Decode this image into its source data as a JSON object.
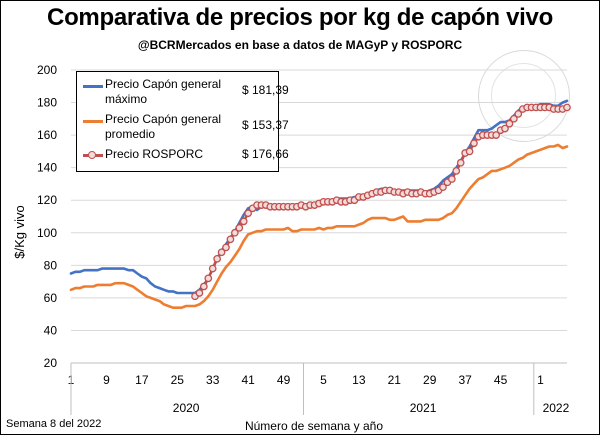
{
  "chart_data": {
    "type": "line",
    "title": "Comparativa de precios por kg de capón vivo",
    "subtitle": "@BCRMercados en base a datos de MAGyP y ROSPORC",
    "xlabel": "Número de semana y año",
    "ylabel": "$/Kg vivo",
    "ylim": [
      20,
      200
    ],
    "yticks": [
      20,
      40,
      60,
      80,
      100,
      120,
      140,
      160,
      180,
      200
    ],
    "x": [
      1,
      2,
      3,
      4,
      5,
      6,
      7,
      8,
      9,
      10,
      11,
      12,
      13,
      14,
      15,
      16,
      17,
      18,
      19,
      20,
      21,
      22,
      23,
      24,
      25,
      26,
      27,
      28,
      29,
      30,
      31,
      32,
      33,
      34,
      35,
      36,
      37,
      38,
      39,
      40,
      41,
      42,
      43,
      44,
      45,
      46,
      47,
      48,
      49,
      50,
      51,
      52,
      53,
      1,
      2,
      3,
      4,
      5,
      6,
      7,
      8,
      9,
      10,
      11,
      12,
      13,
      14,
      15,
      16,
      17,
      18,
      19,
      20,
      21,
      22,
      23,
      24,
      25,
      26,
      27,
      28,
      29,
      30,
      31,
      32,
      33,
      34,
      35,
      36,
      37,
      38,
      39,
      40,
      41,
      42,
      43,
      44,
      45,
      46,
      47,
      48,
      49,
      50,
      51,
      52,
      1,
      2,
      3,
      4,
      5,
      6,
      7,
      8
    ],
    "xtick_labels": [
      "1",
      "9",
      "17",
      "25",
      "33",
      "41",
      "49",
      "5",
      "13",
      "21",
      "29",
      "37",
      "45",
      "1"
    ],
    "xtick_indices": [
      0,
      8,
      16,
      24,
      32,
      40,
      48,
      57,
      65,
      73,
      81,
      89,
      97,
      106
    ],
    "year_labels": [
      "2020",
      "2021",
      "2022"
    ],
    "year_centers": [
      26,
      79.5,
      109.5
    ],
    "year_separators": [
      52.5,
      104.5
    ],
    "grid": "horizontal",
    "legend_position": "top-left",
    "series": [
      {
        "name": "Precio Capón general máximo",
        "legend_lines": [
          "Precio Capón general",
          "máximo"
        ],
        "current_value": "$ 181,39",
        "color": "#4472c4",
        "marker": "none",
        "values": [
          75,
          76,
          76,
          77,
          77,
          77,
          77,
          78,
          78,
          78,
          78,
          78,
          78,
          77,
          77,
          75,
          73,
          72,
          69,
          67,
          66,
          65,
          64,
          64,
          63,
          63,
          63,
          63,
          63,
          65,
          68,
          72,
          78,
          84,
          89,
          93,
          97,
          101,
          106,
          111,
          115,
          116,
          114,
          116,
          117,
          117,
          117,
          117,
          117,
          116,
          116,
          116,
          116,
          116,
          117,
          117,
          119,
          119,
          120,
          120,
          121,
          121,
          121,
          121,
          122,
          122,
          123,
          124,
          125,
          126,
          127,
          127,
          127,
          126,
          126,
          126,
          126,
          126,
          126,
          126,
          125,
          126,
          127,
          129,
          132,
          134,
          136,
          140,
          144,
          149,
          153,
          158,
          163,
          163,
          163,
          164,
          166,
          168,
          168,
          169,
          172,
          175,
          177,
          178,
          178,
          178,
          179,
          179,
          179,
          178,
          178,
          180,
          181
        ]
      },
      {
        "name": "Precio Capón general promedio",
        "legend_lines": [
          "Precio Capón general",
          "promedio"
        ],
        "current_value": "$ 153,37",
        "color": "#ed7d31",
        "marker": "none",
        "values": [
          65,
          66,
          66,
          67,
          67,
          67,
          68,
          68,
          68,
          68,
          69,
          69,
          69,
          68,
          67,
          65,
          63,
          61,
          60,
          59,
          58,
          56,
          55,
          54,
          54,
          54,
          55,
          55,
          55,
          56,
          58,
          61,
          65,
          70,
          75,
          79,
          82,
          86,
          90,
          95,
          99,
          100,
          101,
          101,
          102,
          102,
          102,
          102,
          102,
          103,
          101,
          101,
          102,
          102,
          102,
          102,
          103,
          102,
          103,
          103,
          104,
          104,
          104,
          104,
          104,
          105,
          106,
          108,
          109,
          109,
          109,
          109,
          108,
          108,
          109,
          110,
          107,
          107,
          107,
          107,
          108,
          108,
          108,
          108,
          109,
          111,
          112,
          115,
          119,
          123,
          127,
          130,
          133,
          134,
          136,
          138,
          138,
          139,
          140,
          141,
          143,
          145,
          146,
          148,
          149,
          150,
          151,
          152,
          153,
          153,
          154,
          152,
          153
        ]
      },
      {
        "name": "Precio ROSPORC",
        "legend_lines": [
          "Precio ROSPORC"
        ],
        "current_value": "$ 176,66",
        "color": "#c0504d",
        "marker": "circle",
        "marker_start": 28,
        "values": [
          null,
          null,
          null,
          null,
          null,
          null,
          null,
          null,
          null,
          null,
          null,
          null,
          null,
          null,
          null,
          null,
          null,
          null,
          null,
          null,
          null,
          null,
          null,
          null,
          null,
          null,
          null,
          null,
          61,
          63,
          67,
          72,
          78,
          84,
          88,
          91,
          96,
          100,
          103,
          107,
          112,
          115,
          117,
          117,
          117,
          116,
          116,
          116,
          116,
          116,
          116,
          116,
          117,
          116,
          117,
          117,
          118,
          119,
          119,
          119,
          120,
          119,
          119,
          120,
          120,
          122,
          122,
          123,
          124,
          125,
          125,
          126,
          126,
          125,
          125,
          124,
          125,
          124,
          124,
          125,
          124,
          124,
          125,
          126,
          128,
          131,
          133,
          138,
          143,
          149,
          150,
          155,
          159,
          160,
          160,
          160,
          160,
          163,
          164,
          167,
          170,
          173,
          176,
          177,
          177,
          177,
          177,
          177,
          177,
          176,
          176,
          176,
          177
        ]
      }
    ]
  },
  "footnote": "Semana 8 del 2022"
}
